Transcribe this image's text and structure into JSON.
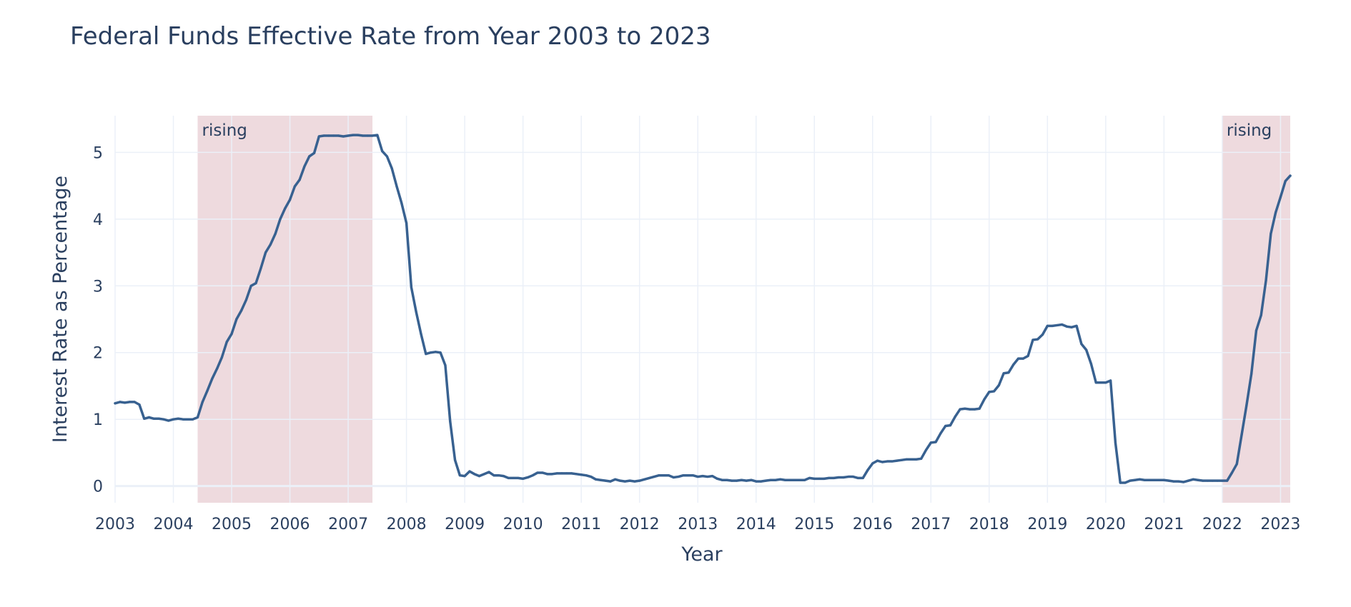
{
  "chart_data": {
    "type": "line",
    "title": "Federal Funds Effective Rate from Year 2003 to 2023",
    "xlabel": "Year",
    "ylabel": "Interest Rate as Percentage",
    "xlim": [
      "2003-01-01",
      "2023-03-01"
    ],
    "ylim": [
      -0.25,
      5.55
    ],
    "grid": true,
    "legend": "none",
    "xticks": [
      "2003",
      "2004",
      "2005",
      "2006",
      "2007",
      "2008",
      "2009",
      "2010",
      "2011",
      "2012",
      "2013",
      "2014",
      "2015",
      "2016",
      "2017",
      "2018",
      "2019",
      "2020",
      "2021",
      "2022",
      "2023"
    ],
    "yticks": [
      "0",
      "1",
      "2",
      "3",
      "4",
      "5"
    ],
    "bands": [
      {
        "label": "rising",
        "start": "2004-06-01",
        "end": "2007-06-01",
        "color": "#e3c4ca"
      },
      {
        "label": "rising",
        "start": "2022-01-01",
        "end": "2023-03-01",
        "color": "#e3c4ca"
      }
    ],
    "series": [
      {
        "color": "#386190",
        "points": [
          [
            "2003-01-01",
            1.24
          ],
          [
            "2003-02-01",
            1.26
          ],
          [
            "2003-03-01",
            1.25
          ],
          [
            "2003-04-01",
            1.26
          ],
          [
            "2003-05-01",
            1.26
          ],
          [
            "2003-06-01",
            1.22
          ],
          [
            "2003-07-01",
            1.01
          ],
          [
            "2003-08-01",
            1.03
          ],
          [
            "2003-09-01",
            1.01
          ],
          [
            "2003-10-01",
            1.01
          ],
          [
            "2003-11-01",
            1.0
          ],
          [
            "2003-12-01",
            0.98
          ],
          [
            "2004-01-01",
            1.0
          ],
          [
            "2004-02-01",
            1.01
          ],
          [
            "2004-03-01",
            1.0
          ],
          [
            "2004-04-01",
            1.0
          ],
          [
            "2004-05-01",
            1.0
          ],
          [
            "2004-06-01",
            1.03
          ],
          [
            "2004-07-01",
            1.26
          ],
          [
            "2004-08-01",
            1.43
          ],
          [
            "2004-09-01",
            1.61
          ],
          [
            "2004-10-01",
            1.76
          ],
          [
            "2004-11-01",
            1.93
          ],
          [
            "2004-12-01",
            2.16
          ],
          [
            "2005-01-01",
            2.28
          ],
          [
            "2005-02-01",
            2.5
          ],
          [
            "2005-03-01",
            2.63
          ],
          [
            "2005-04-01",
            2.79
          ],
          [
            "2005-05-01",
            3.0
          ],
          [
            "2005-06-01",
            3.04
          ],
          [
            "2005-07-01",
            3.26
          ],
          [
            "2005-08-01",
            3.5
          ],
          [
            "2005-09-01",
            3.62
          ],
          [
            "2005-10-01",
            3.78
          ],
          [
            "2005-11-01",
            4.0
          ],
          [
            "2005-12-01",
            4.16
          ],
          [
            "2006-01-01",
            4.29
          ],
          [
            "2006-02-01",
            4.49
          ],
          [
            "2006-03-01",
            4.59
          ],
          [
            "2006-04-01",
            4.79
          ],
          [
            "2006-05-01",
            4.94
          ],
          [
            "2006-06-01",
            4.99
          ],
          [
            "2006-07-01",
            5.24
          ],
          [
            "2006-08-01",
            5.25
          ],
          [
            "2006-09-01",
            5.25
          ],
          [
            "2006-10-01",
            5.25
          ],
          [
            "2006-11-01",
            5.25
          ],
          [
            "2006-12-01",
            5.24
          ],
          [
            "2007-01-01",
            5.25
          ],
          [
            "2007-02-01",
            5.26
          ],
          [
            "2007-03-01",
            5.26
          ],
          [
            "2007-04-01",
            5.25
          ],
          [
            "2007-05-01",
            5.25
          ],
          [
            "2007-06-01",
            5.25
          ],
          [
            "2007-07-01",
            5.26
          ],
          [
            "2007-08-01",
            5.02
          ],
          [
            "2007-09-01",
            4.94
          ],
          [
            "2007-10-01",
            4.76
          ],
          [
            "2007-11-01",
            4.49
          ],
          [
            "2007-12-01",
            4.24
          ],
          [
            "2008-01-01",
            3.94
          ],
          [
            "2008-02-01",
            2.98
          ],
          [
            "2008-03-01",
            2.61
          ],
          [
            "2008-04-01",
            2.28
          ],
          [
            "2008-05-01",
            1.98
          ],
          [
            "2008-06-01",
            2.0
          ],
          [
            "2008-07-01",
            2.01
          ],
          [
            "2008-08-01",
            2.0
          ],
          [
            "2008-09-01",
            1.81
          ],
          [
            "2008-10-01",
            0.97
          ],
          [
            "2008-11-01",
            0.39
          ],
          [
            "2008-12-01",
            0.16
          ],
          [
            "2009-01-01",
            0.15
          ],
          [
            "2009-02-01",
            0.22
          ],
          [
            "2009-03-01",
            0.18
          ],
          [
            "2009-04-01",
            0.15
          ],
          [
            "2009-05-01",
            0.18
          ],
          [
            "2009-06-01",
            0.21
          ],
          [
            "2009-07-01",
            0.16
          ],
          [
            "2009-08-01",
            0.16
          ],
          [
            "2009-09-01",
            0.15
          ],
          [
            "2009-10-01",
            0.12
          ],
          [
            "2009-11-01",
            0.12
          ],
          [
            "2009-12-01",
            0.12
          ],
          [
            "2010-01-01",
            0.11
          ],
          [
            "2010-02-01",
            0.13
          ],
          [
            "2010-03-01",
            0.16
          ],
          [
            "2010-04-01",
            0.2
          ],
          [
            "2010-05-01",
            0.2
          ],
          [
            "2010-06-01",
            0.18
          ],
          [
            "2010-07-01",
            0.18
          ],
          [
            "2010-08-01",
            0.19
          ],
          [
            "2010-09-01",
            0.19
          ],
          [
            "2010-10-01",
            0.19
          ],
          [
            "2010-11-01",
            0.19
          ],
          [
            "2010-12-01",
            0.18
          ],
          [
            "2011-01-01",
            0.17
          ],
          [
            "2011-02-01",
            0.16
          ],
          [
            "2011-03-01",
            0.14
          ],
          [
            "2011-04-01",
            0.1
          ],
          [
            "2011-05-01",
            0.09
          ],
          [
            "2011-06-01",
            0.08
          ],
          [
            "2011-07-01",
            0.07
          ],
          [
            "2011-08-01",
            0.1
          ],
          [
            "2011-09-01",
            0.08
          ],
          [
            "2011-10-01",
            0.07
          ],
          [
            "2011-11-01",
            0.08
          ],
          [
            "2011-12-01",
            0.07
          ],
          [
            "2012-01-01",
            0.08
          ],
          [
            "2012-02-01",
            0.1
          ],
          [
            "2012-03-01",
            0.12
          ],
          [
            "2012-04-01",
            0.14
          ],
          [
            "2012-05-01",
            0.16
          ],
          [
            "2012-06-01",
            0.16
          ],
          [
            "2012-07-01",
            0.16
          ],
          [
            "2012-08-01",
            0.13
          ],
          [
            "2012-09-01",
            0.14
          ],
          [
            "2012-10-01",
            0.16
          ],
          [
            "2012-11-01",
            0.16
          ],
          [
            "2012-12-01",
            0.16
          ],
          [
            "2013-01-01",
            0.14
          ],
          [
            "2013-02-01",
            0.15
          ],
          [
            "2013-03-01",
            0.14
          ],
          [
            "2013-04-01",
            0.15
          ],
          [
            "2013-05-01",
            0.11
          ],
          [
            "2013-06-01",
            0.09
          ],
          [
            "2013-07-01",
            0.09
          ],
          [
            "2013-08-01",
            0.08
          ],
          [
            "2013-09-01",
            0.08
          ],
          [
            "2013-10-01",
            0.09
          ],
          [
            "2013-11-01",
            0.08
          ],
          [
            "2013-12-01",
            0.09
          ],
          [
            "2014-01-01",
            0.07
          ],
          [
            "2014-02-01",
            0.07
          ],
          [
            "2014-03-01",
            0.08
          ],
          [
            "2014-04-01",
            0.09
          ],
          [
            "2014-05-01",
            0.09
          ],
          [
            "2014-06-01",
            0.1
          ],
          [
            "2014-07-01",
            0.09
          ],
          [
            "2014-08-01",
            0.09
          ],
          [
            "2014-09-01",
            0.09
          ],
          [
            "2014-10-01",
            0.09
          ],
          [
            "2014-11-01",
            0.09
          ],
          [
            "2014-12-01",
            0.12
          ],
          [
            "2015-01-01",
            0.11
          ],
          [
            "2015-02-01",
            0.11
          ],
          [
            "2015-03-01",
            0.11
          ],
          [
            "2015-04-01",
            0.12
          ],
          [
            "2015-05-01",
            0.12
          ],
          [
            "2015-06-01",
            0.13
          ],
          [
            "2015-07-01",
            0.13
          ],
          [
            "2015-08-01",
            0.14
          ],
          [
            "2015-09-01",
            0.14
          ],
          [
            "2015-10-01",
            0.12
          ],
          [
            "2015-11-01",
            0.12
          ],
          [
            "2015-12-01",
            0.24
          ],
          [
            "2016-01-01",
            0.34
          ],
          [
            "2016-02-01",
            0.38
          ],
          [
            "2016-03-01",
            0.36
          ],
          [
            "2016-04-01",
            0.37
          ],
          [
            "2016-05-01",
            0.37
          ],
          [
            "2016-06-01",
            0.38
          ],
          [
            "2016-07-01",
            0.39
          ],
          [
            "2016-08-01",
            0.4
          ],
          [
            "2016-09-01",
            0.4
          ],
          [
            "2016-10-01",
            0.4
          ],
          [
            "2016-11-01",
            0.41
          ],
          [
            "2016-12-01",
            0.54
          ],
          [
            "2017-01-01",
            0.65
          ],
          [
            "2017-02-01",
            0.66
          ],
          [
            "2017-03-01",
            0.79
          ],
          [
            "2017-04-01",
            0.9
          ],
          [
            "2017-05-01",
            0.91
          ],
          [
            "2017-06-01",
            1.04
          ],
          [
            "2017-07-01",
            1.15
          ],
          [
            "2017-08-01",
            1.16
          ],
          [
            "2017-09-01",
            1.15
          ],
          [
            "2017-10-01",
            1.15
          ],
          [
            "2017-11-01",
            1.16
          ],
          [
            "2017-12-01",
            1.3
          ],
          [
            "2018-01-01",
            1.41
          ],
          [
            "2018-02-01",
            1.42
          ],
          [
            "2018-03-01",
            1.51
          ],
          [
            "2018-04-01",
            1.69
          ],
          [
            "2018-05-01",
            1.7
          ],
          [
            "2018-06-01",
            1.82
          ],
          [
            "2018-07-01",
            1.91
          ],
          [
            "2018-08-01",
            1.91
          ],
          [
            "2018-09-01",
            1.95
          ],
          [
            "2018-10-01",
            2.19
          ],
          [
            "2018-11-01",
            2.2
          ],
          [
            "2018-12-01",
            2.27
          ],
          [
            "2019-01-01",
            2.4
          ],
          [
            "2019-02-01",
            2.4
          ],
          [
            "2019-03-01",
            2.41
          ],
          [
            "2019-04-01",
            2.42
          ],
          [
            "2019-05-01",
            2.39
          ],
          [
            "2019-06-01",
            2.38
          ],
          [
            "2019-07-01",
            2.4
          ],
          [
            "2019-08-01",
            2.13
          ],
          [
            "2019-09-01",
            2.04
          ],
          [
            "2019-10-01",
            1.83
          ],
          [
            "2019-11-01",
            1.55
          ],
          [
            "2019-12-01",
            1.55
          ],
          [
            "2020-01-01",
            1.55
          ],
          [
            "2020-02-01",
            1.58
          ],
          [
            "2020-03-01",
            0.65
          ],
          [
            "2020-04-01",
            0.05
          ],
          [
            "2020-05-01",
            0.05
          ],
          [
            "2020-06-01",
            0.08
          ],
          [
            "2020-07-01",
            0.09
          ],
          [
            "2020-08-01",
            0.1
          ],
          [
            "2020-09-01",
            0.09
          ],
          [
            "2020-10-01",
            0.09
          ],
          [
            "2020-11-01",
            0.09
          ],
          [
            "2020-12-01",
            0.09
          ],
          [
            "2021-01-01",
            0.09
          ],
          [
            "2021-02-01",
            0.08
          ],
          [
            "2021-03-01",
            0.07
          ],
          [
            "2021-04-01",
            0.07
          ],
          [
            "2021-05-01",
            0.06
          ],
          [
            "2021-06-01",
            0.08
          ],
          [
            "2021-07-01",
            0.1
          ],
          [
            "2021-08-01",
            0.09
          ],
          [
            "2021-09-01",
            0.08
          ],
          [
            "2021-10-01",
            0.08
          ],
          [
            "2021-11-01",
            0.08
          ],
          [
            "2021-12-01",
            0.08
          ],
          [
            "2022-01-01",
            0.08
          ],
          [
            "2022-02-01",
            0.08
          ],
          [
            "2022-03-01",
            0.2
          ],
          [
            "2022-04-01",
            0.33
          ],
          [
            "2022-05-01",
            0.77
          ],
          [
            "2022-06-01",
            1.21
          ],
          [
            "2022-07-01",
            1.68
          ],
          [
            "2022-08-01",
            2.33
          ],
          [
            "2022-09-01",
            2.56
          ],
          [
            "2022-10-01",
            3.08
          ],
          [
            "2022-11-01",
            3.78
          ],
          [
            "2022-12-01",
            4.1
          ],
          [
            "2023-01-01",
            4.33
          ],
          [
            "2023-02-01",
            4.57
          ],
          [
            "2023-03-01",
            4.65
          ]
        ]
      }
    ]
  }
}
